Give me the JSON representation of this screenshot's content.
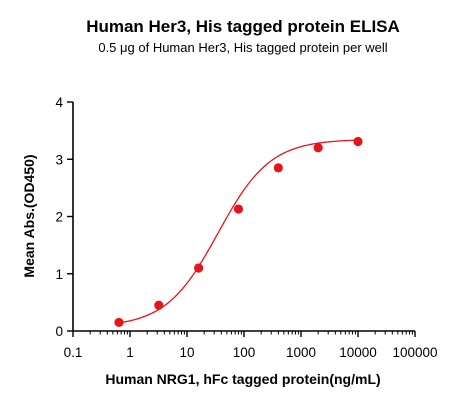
{
  "chart_data": {
    "type": "scatter",
    "title": "Human Her3, His tagged protein ELISA",
    "subtitle": "0.5 μg of Human Her3, His tagged protein per well",
    "xlabel": "Human NRG1, hFc tagged protein(ng/mL)",
    "ylabel": "Mean Abs.(OD450)",
    "x_scale": "log",
    "xlim": [
      0.1,
      100000
    ],
    "ylim": [
      0,
      4
    ],
    "x_ticks": [
      "0.1",
      "1",
      "10",
      "100",
      "1000",
      "10000",
      "100000"
    ],
    "y_ticks": [
      "0",
      "1",
      "2",
      "3",
      "4"
    ],
    "grid": false,
    "legend": "none",
    "colors": {
      "points": "#e8141b",
      "curve": "#e8141b",
      "axes": "#000000"
    },
    "series": [
      {
        "x": [
          0.64,
          3.2,
          16,
          80,
          400,
          2000,
          10000
        ],
        "y": [
          0.15,
          0.45,
          1.1,
          2.13,
          2.85,
          3.2,
          3.31
        ]
      }
    ],
    "fit_curve": {
      "model": "4PL",
      "bottom": 0.07,
      "top": 3.35,
      "ec50": 35,
      "hill": 0.95
    }
  }
}
